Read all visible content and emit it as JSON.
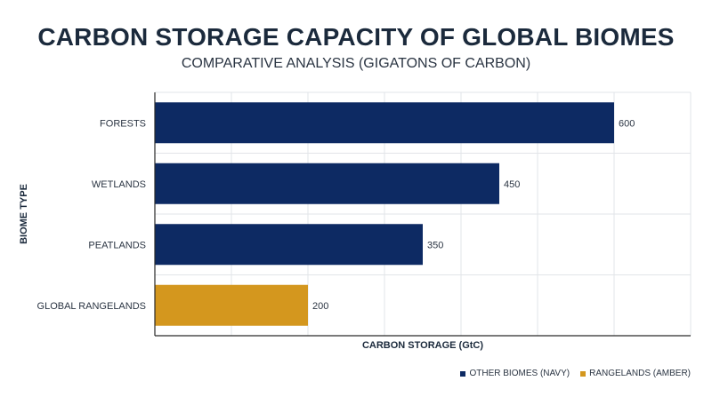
{
  "title": "CARBON STORAGE CAPACITY OF GLOBAL BIOMES",
  "subtitle": "COMPARATIVE ANALYSIS (GIGATONS OF CARBON)",
  "colors": {
    "navy": "#0d2a63",
    "amber": "#d4971e",
    "grid": "#e2e4e8",
    "axis": "#2a2a2a"
  },
  "legend": [
    {
      "label": "OTHER BIOMES (NAVY)",
      "color": "#0d2a63"
    },
    {
      "label": "RANGELANDS (AMBER)",
      "color": "#d4971e"
    }
  ],
  "chart_data": {
    "type": "bar",
    "orientation": "horizontal",
    "categories": [
      "FORESTS",
      "WETLANDS",
      "PEATLANDS",
      "GLOBAL RANGELANDS"
    ],
    "values": [
      600,
      450,
      350,
      200
    ],
    "bar_colors": [
      "#0d2a63",
      "#0d2a63",
      "#0d2a63",
      "#d4971e"
    ],
    "data_labels": [
      "600",
      "450",
      "350",
      "200"
    ],
    "xlabel": "CARBON STORAGE (GtC)",
    "ylabel": "BIOME TYPE",
    "xlim": [
      0,
      700
    ],
    "grid": true,
    "legend_position": "bottom-right"
  }
}
